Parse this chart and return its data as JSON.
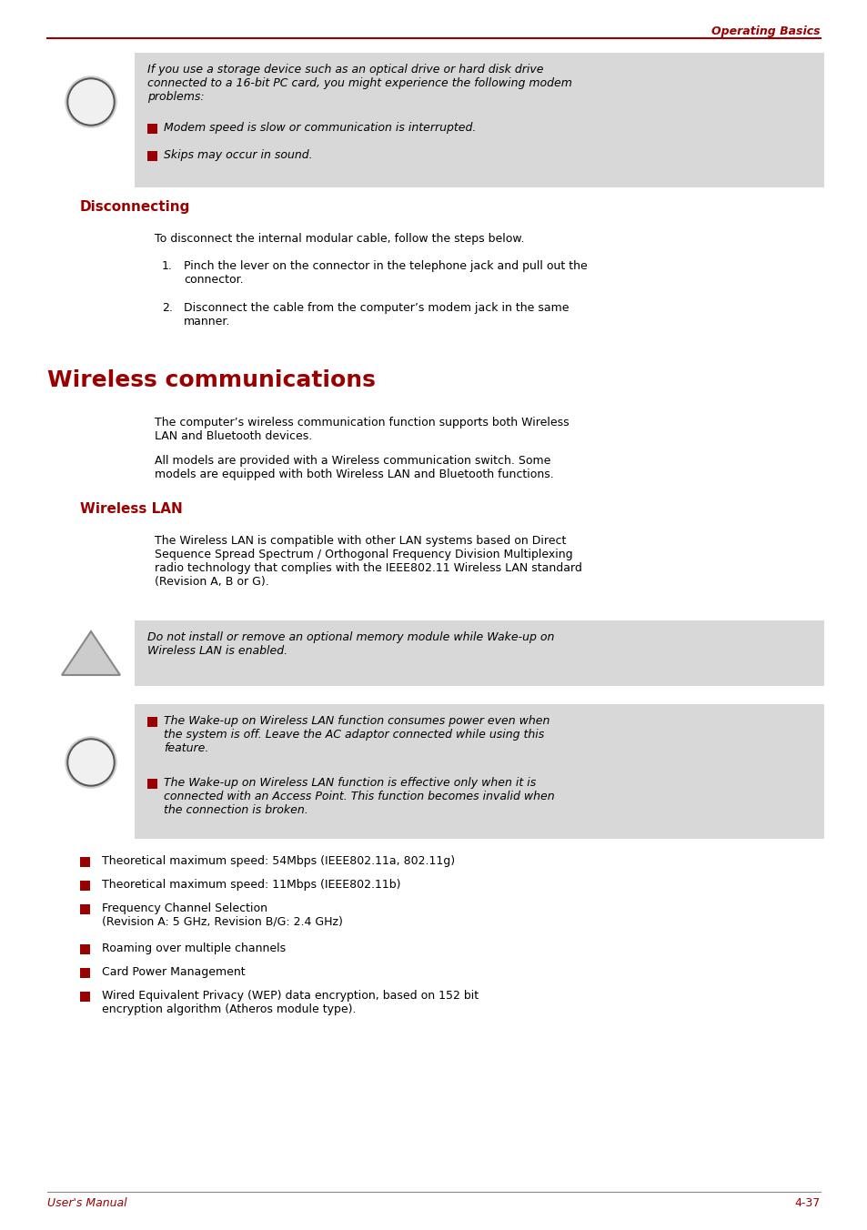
{
  "page_bg": "#ffffff",
  "header_text": "Operating Basics",
  "header_color": "#9B0000",
  "header_line_color": "#9B0000",
  "footer_left": "User's Manual",
  "footer_right": "4-37",
  "footer_color": "#9B0000",
  "red_color": "#9B0000",
  "box_bg": "#d8d8d8",
  "text_color": "#000000",
  "info_box1_main": "If you use a storage device such as an optical drive or hard disk drive\nconnected to a 16-bit PC card, you might experience the following modem\nproblems:",
  "info_box1_bullets": [
    "Modem speed is slow or communication is interrupted.",
    "Skips may occur in sound."
  ],
  "section1_title": "Disconnecting",
  "section1_intro": "To disconnect the internal modular cable, follow the steps below.",
  "section1_steps": [
    "Pinch the lever on the connector in the telephone jack and pull out the\nconnector.",
    "Disconnect the cable from the computer’s modem jack in the same\nmanner."
  ],
  "section2_title": "Wireless communications",
  "section2_para1": "The computer’s wireless communication function supports both Wireless\nLAN and Bluetooth devices.",
  "section2_para2": "All models are provided with a Wireless communication switch. Some\nmodels are equipped with both Wireless LAN and Bluetooth functions.",
  "section3_title": "Wireless LAN",
  "section3_para1": "The Wireless LAN is compatible with other LAN systems based on Direct\nSequence Spread Spectrum / Orthogonal Frequency Division Multiplexing\nradio technology that complies with the IEEE802.11 Wireless LAN standard\n(Revision A, B or G).",
  "warning_text": "Do not install or remove an optional memory module while Wake-up on\nWireless LAN is enabled.",
  "info_box2_bullets": [
    "The Wake-up on Wireless LAN function consumes power even when\nthe system is off. Leave the AC adaptor connected while using this\nfeature.",
    "The Wake-up on Wireless LAN function is effective only when it is\nconnected with an Access Point. This function becomes invalid when\nthe connection is broken."
  ],
  "feature_bullets": [
    "Theoretical maximum speed: 54Mbps (IEEE802.11a, 802.11g)",
    "Theoretical maximum speed: 11Mbps (IEEE802.11b)",
    "Frequency Channel Selection\n(Revision A: 5 GHz, Revision B/G: 2.4 GHz)",
    "Roaming over multiple channels",
    "Card Power Management",
    "Wired Equivalent Privacy (WEP) data encryption, based on 152 bit\nencryption algorithm (Atheros module type)."
  ]
}
